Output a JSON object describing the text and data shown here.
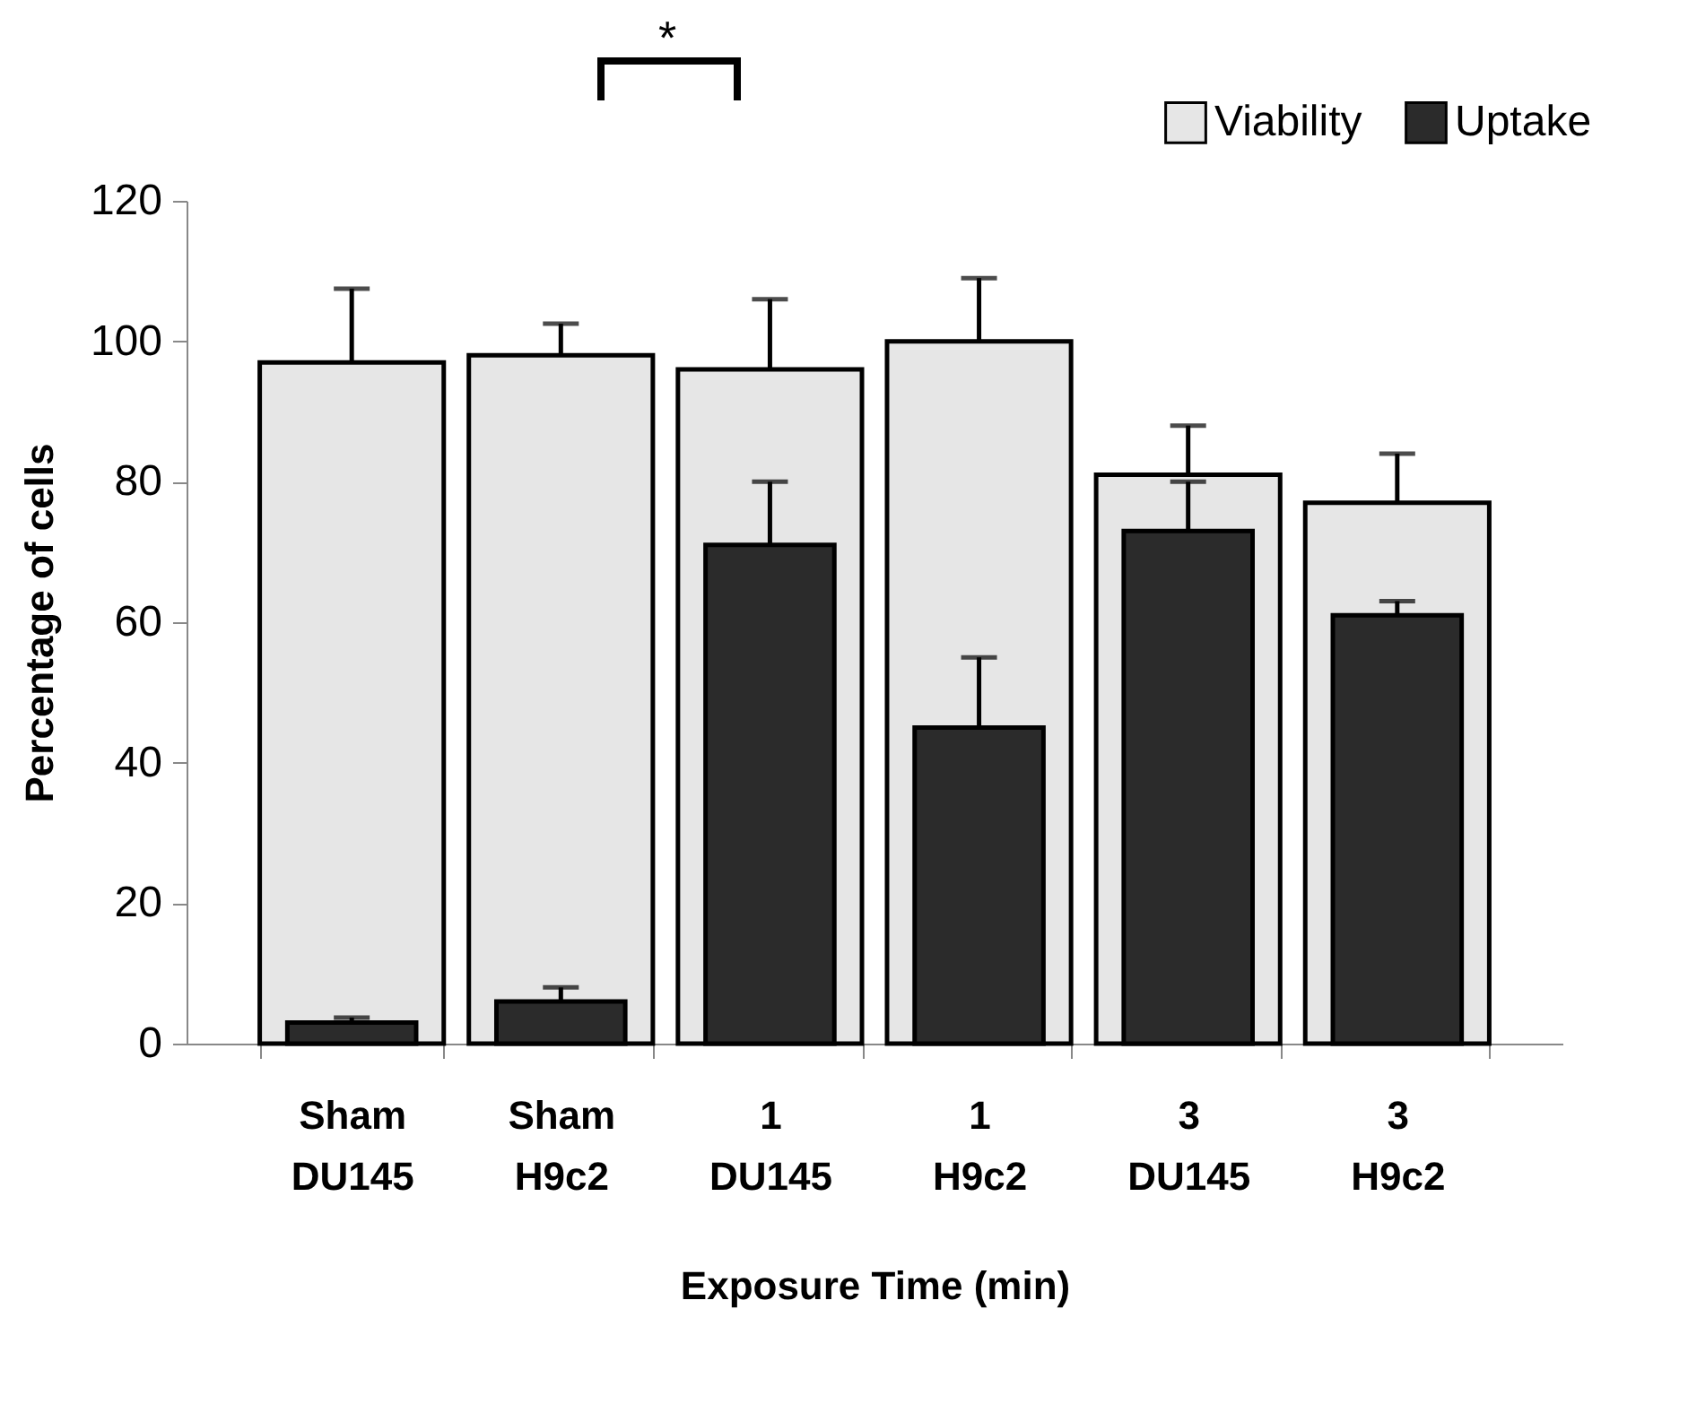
{
  "chart_data": {
    "type": "bar",
    "xlabel": "Exposure Time (min)",
    "ylabel": "Percentage of cells",
    "categories": [
      "Sham DU145",
      "Sham H9c2",
      "1 DU145",
      "1 H9c2",
      "3 DU145",
      "3 H9c2"
    ],
    "series": [
      {
        "name": "Viability",
        "color": "#e6e6e6",
        "values": [
          97,
          98,
          96,
          100,
          81,
          77
        ],
        "errors": [
          [
            97,
            107.5
          ],
          [
            98,
            102.5
          ],
          [
            96,
            106
          ],
          [
            100,
            109
          ],
          [
            81,
            88
          ],
          [
            77,
            84
          ]
        ]
      },
      {
        "name": "Uptake",
        "color": "#2b2b2b",
        "values": [
          3,
          6,
          71,
          45,
          73,
          61
        ],
        "errors": [
          [
            3,
            3.7
          ],
          [
            6,
            8
          ],
          [
            71,
            80
          ],
          [
            45,
            55
          ],
          [
            73,
            80
          ],
          [
            61,
            63
          ]
        ]
      }
    ],
    "ylim": [
      0,
      120
    ],
    "yticks": [
      0,
      20,
      40,
      60,
      80,
      100,
      120
    ],
    "grid": false,
    "legend": "top right",
    "annotations": [
      "*"
    ]
  }
}
